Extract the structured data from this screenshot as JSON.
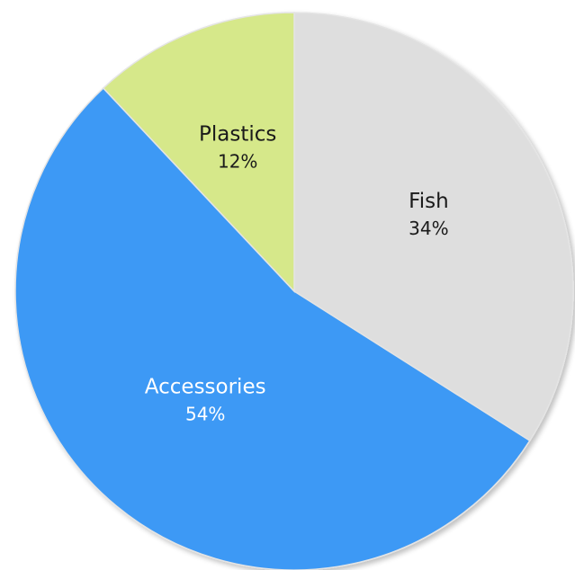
{
  "chart_data": {
    "type": "pie",
    "start_angle_deg": 0,
    "direction": "clockwise",
    "slices": [
      {
        "label": "Fish",
        "value": 34,
        "value_label": "34%",
        "color": "#dedede",
        "text_color": "#1a1a1a"
      },
      {
        "label": "Accessories",
        "value": 54,
        "value_label": "54%",
        "color": "#3d99f5",
        "text_color": "#ffffff"
      },
      {
        "label": "Plastics",
        "value": 12,
        "value_label": "12%",
        "color": "#d6e88a",
        "text_color": "#1a1a1a"
      }
    ]
  }
}
